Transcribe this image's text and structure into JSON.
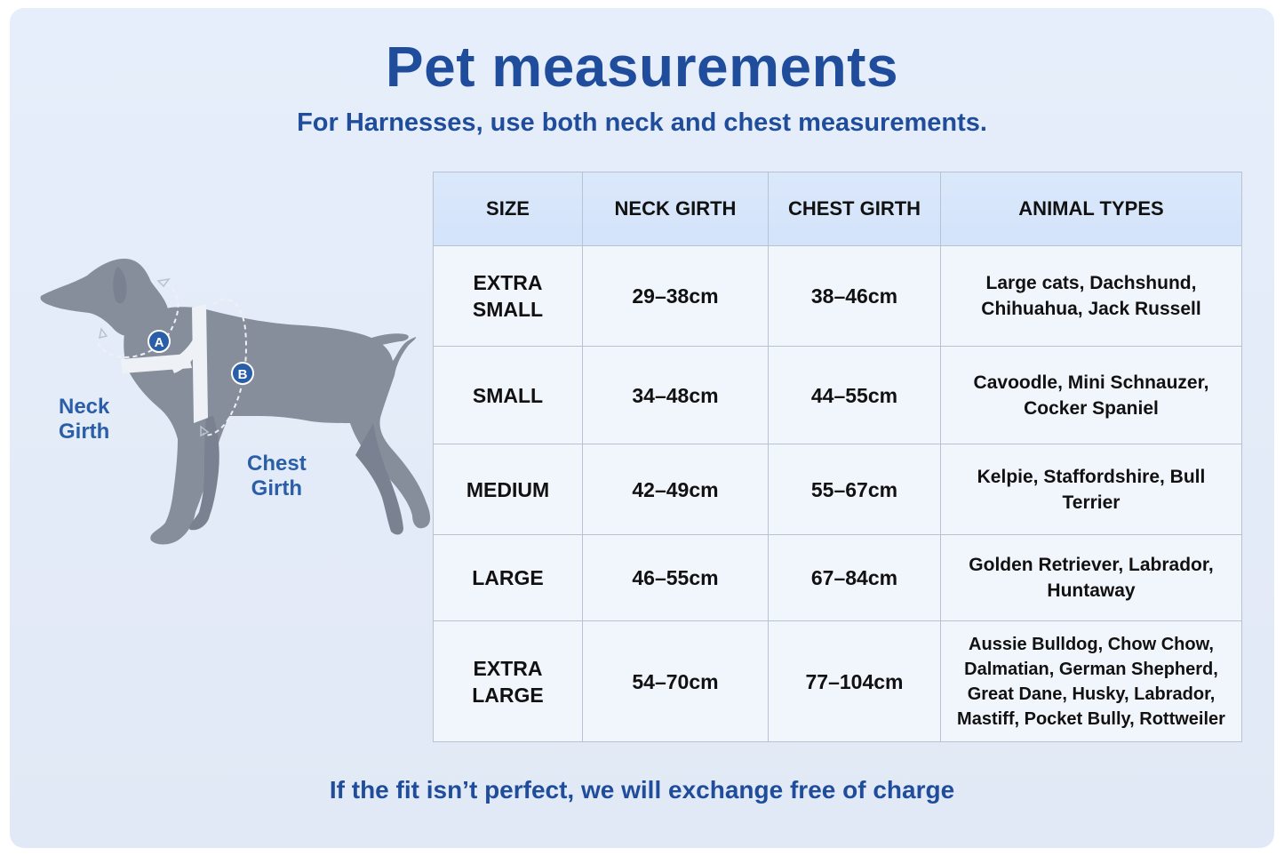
{
  "title": "Pet measurements",
  "subtitle": "For Harnesses, use both neck and chest measurements.",
  "footer": "If the fit isn’t perfect, we will exchange free of charge",
  "diagram": {
    "marker_a": "A",
    "marker_b": "B",
    "neck_label": [
      "Neck",
      "Girth"
    ],
    "chest_label": [
      "Chest",
      "Girth"
    ],
    "dog_color": "#868e9c",
    "harness_color": "#eef1f6"
  },
  "table": {
    "headers": [
      "SIZE",
      "NECK GIRTH",
      "CHEST GIRTH",
      "ANIMAL TYPES"
    ],
    "rows": [
      {
        "size": [
          "EXTRA",
          "SMALL"
        ],
        "neck": "29–38cm",
        "chest": "38–46cm",
        "types": [
          "Large cats, Dachshund,",
          "Chihuahua, Jack Russell"
        ]
      },
      {
        "size": [
          "SMALL"
        ],
        "neck": "34–48cm",
        "chest": "44–55cm",
        "types": [
          "Cavoodle, Mini Schnauzer,",
          "Cocker Spaniel"
        ]
      },
      {
        "size": [
          "MEDIUM"
        ],
        "neck": "42–49cm",
        "chest": "55–67cm",
        "types": [
          "Kelpie, Staffordshire, Bull",
          "Terrier"
        ]
      },
      {
        "size": [
          "LARGE"
        ],
        "neck": "46–55cm",
        "chest": "67–84cm",
        "types": [
          "Golden Retriever, Labrador,",
          "Huntaway"
        ]
      },
      {
        "size": [
          "EXTRA",
          "LARGE"
        ],
        "neck": "54–70cm",
        "chest": "77–104cm",
        "types": [
          "Aussie Bulldog, Chow Chow,",
          "Dalmatian, German Shepherd,",
          "Great Dane, Husky, Labrador,",
          "Mastiff, Pocket Bully, Rottweiler"
        ]
      }
    ]
  },
  "colors": {
    "heading": "#1f4d9c",
    "label": "#2a5ea8",
    "background": "#e5ecf9",
    "table_header": "#d6e5fb",
    "table_border": "#b8c2d2"
  }
}
